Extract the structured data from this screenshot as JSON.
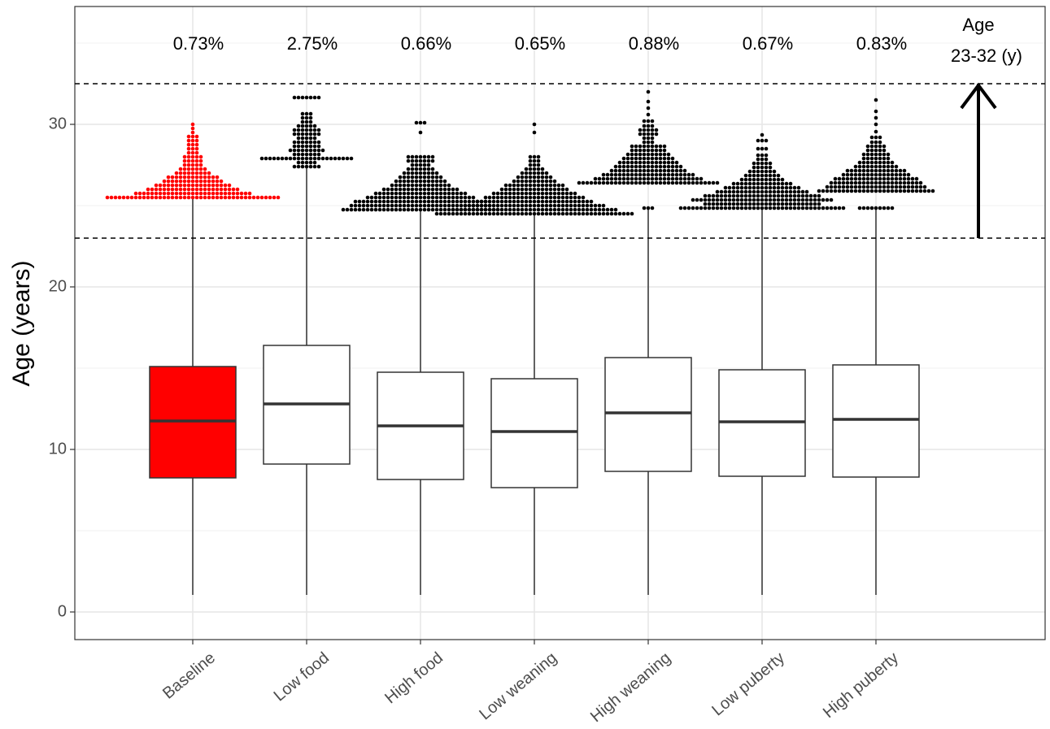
{
  "chart_data": {
    "type": "boxplot",
    "y_label": "Age (years)",
    "categories": [
      "Baseline",
      "Low food",
      "High food",
      "Low weaning",
      "High weaning",
      "Low puberty",
      "High puberty"
    ],
    "ylim": [
      -1.7,
      37.25
    ],
    "yticks": [
      0,
      10,
      20,
      30
    ],
    "minor_yticks": [
      5,
      15,
      25,
      35
    ],
    "grid": true,
    "ref_lines": [
      23,
      32.5
    ],
    "annotation_lines": [
      "Age",
      "23-32 (y)"
    ],
    "pct_values": [
      0.73,
      2.75,
      0.66,
      0.65,
      0.88,
      0.67,
      0.83
    ],
    "pct_labels": [
      "0.73%",
      "2.75%",
      "0.66%",
      "0.65%",
      "0.88%",
      "0.67%",
      "0.83%"
    ],
    "pct_y": 34.9,
    "groups": [
      {
        "color": "#ff0000",
        "q1": 8.25,
        "median": 11.75,
        "q3": 15.1,
        "whisker_low": 1.05,
        "whisker_high": 25.4,
        "dot_y": [
          25.5,
          25.75,
          26,
          26.25,
          26.5,
          26.75,
          27,
          27.25,
          27.5,
          27.75,
          28,
          28.25,
          28.5,
          28.75,
          29,
          29.25,
          29.5,
          29.75,
          30
        ],
        "dot_counts": [
          43,
          29,
          23,
          19,
          15,
          13,
          9,
          7,
          5,
          5,
          5,
          3,
          3,
          3,
          3,
          3,
          1,
          1,
          1
        ]
      },
      {
        "color": "#ffffff",
        "q1": 9.1,
        "median": 12.8,
        "q3": 16.4,
        "whisker_low": 1.05,
        "whisker_high": 27.4,
        "dot_y": [
          27.4,
          27.65,
          27.9,
          28.15,
          28.4,
          28.65,
          28.9,
          29.15,
          29.4,
          29.65,
          29.9,
          30.15,
          30.4,
          30.65,
          31.65
        ],
        "dot_counts": [
          7,
          5,
          23,
          7,
          9,
          7,
          7,
          5,
          7,
          7,
          5,
          3,
          3,
          3,
          7
        ]
      },
      {
        "color": "#ffffff",
        "q1": 8.15,
        "median": 11.45,
        "q3": 14.75,
        "whisker_low": 1.05,
        "whisker_high": 24.75,
        "dot_y": [
          24.75,
          25,
          25.25,
          25.5,
          25.75,
          26,
          26.25,
          26.5,
          26.75,
          27,
          27.25,
          27.5,
          27.75,
          28,
          29.5,
          30.1
        ],
        "dot_counts": [
          39,
          35,
          33,
          27,
          23,
          19,
          15,
          13,
          11,
          9,
          7,
          5,
          7,
          7,
          1,
          3
        ]
      },
      {
        "color": "#ffffff",
        "q1": 7.65,
        "median": 11.1,
        "q3": 14.35,
        "whisker_low": 1.05,
        "whisker_high": 24.5,
        "dot_y": [
          24.5,
          24.75,
          25,
          25.25,
          25.5,
          25.75,
          26,
          26.25,
          26.5,
          26.75,
          27,
          27.25,
          27.5,
          27.75,
          28,
          29.5,
          30
        ],
        "dot_counts": [
          49,
          41,
          35,
          29,
          25,
          21,
          17,
          15,
          11,
          9,
          7,
          5,
          3,
          3,
          3,
          1,
          1
        ]
      },
      {
        "color": "#ffffff",
        "q1": 8.65,
        "median": 12.25,
        "q3": 15.65,
        "whisker_low": 1.05,
        "whisker_high": 24.85,
        "dot_y": [
          24.85,
          26.4,
          26.65,
          26.9,
          27.15,
          27.4,
          27.65,
          27.9,
          28.15,
          28.4,
          28.65,
          28.9,
          29.15,
          29.4,
          29.65,
          29.9,
          30.2,
          30.6,
          31,
          31.4,
          32
        ],
        "dot_counts": [
          3,
          35,
          27,
          23,
          19,
          17,
          15,
          13,
          11,
          9,
          9,
          3,
          3,
          5,
          5,
          3,
          3,
          1,
          1,
          1,
          1
        ]
      },
      {
        "color": "#ffffff",
        "q1": 8.35,
        "median": 11.7,
        "q3": 14.9,
        "whisker_low": 1.05,
        "whisker_high": 24.85,
        "dot_y": [
          24.85,
          25.1,
          25.35,
          25.6,
          25.85,
          26.1,
          26.35,
          26.6,
          26.85,
          27.1,
          27.35,
          27.6,
          27.85,
          28.1,
          28.5,
          29,
          29.35
        ],
        "dot_counts": [
          41,
          29,
          35,
          29,
          23,
          19,
          15,
          11,
          9,
          7,
          5,
          5,
          3,
          3,
          3,
          3,
          1
        ]
      },
      {
        "color": "#ffffff",
        "q1": 8.3,
        "median": 11.85,
        "q3": 15.2,
        "whisker_low": 1.05,
        "whisker_high": 24.85,
        "dot_y": [
          24.85,
          25.9,
          26.15,
          26.4,
          26.65,
          26.9,
          27.15,
          27.4,
          27.65,
          27.9,
          28.15,
          28.4,
          28.65,
          28.9,
          29.2,
          29.55,
          30,
          30.4,
          30.8,
          31.5
        ],
        "dot_counts": [
          9,
          29,
          25,
          23,
          21,
          17,
          15,
          11,
          9,
          7,
          7,
          5,
          5,
          3,
          3,
          1,
          1,
          1,
          1,
          1
        ]
      }
    ]
  }
}
